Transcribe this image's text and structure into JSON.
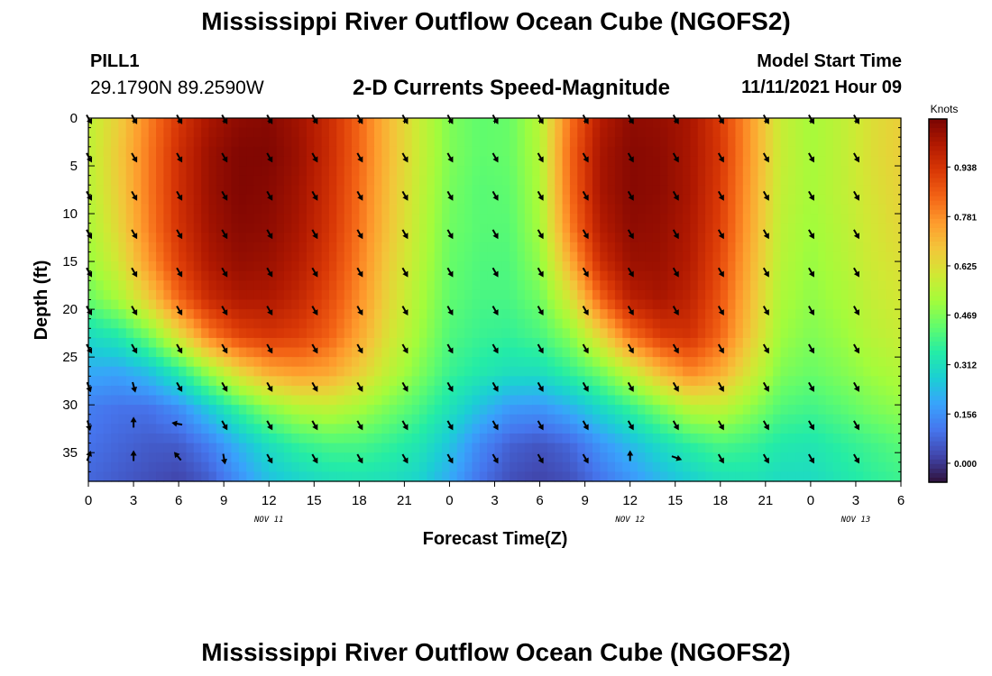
{
  "header": {
    "title": "Mississippi River Outflow Ocean Cube (NGOFS2)",
    "station": "PILL1",
    "coords": "29.1790N  89.2590W",
    "subtitle": "2-D Currents Speed-Magnitude",
    "model_start_label": "Model Start Time",
    "model_start_value": "11/11/2021 Hour 09"
  },
  "footer": {
    "title": "Mississippi River Outflow Ocean Cube (NGOFS2)"
  },
  "chart_data": {
    "type": "heatmap",
    "xlabel": "Forecast Time(Z)",
    "ylabel": "Depth (ft)",
    "colorbar_title": "Knots",
    "x_hours": [
      0,
      3,
      6,
      9,
      12,
      15,
      18,
      21,
      24,
      27,
      30,
      33,
      36,
      39,
      42,
      45,
      48,
      51,
      54
    ],
    "x_tick_labels": [
      "0",
      "3",
      "6",
      "9",
      "12",
      "15",
      "18",
      "21",
      "0",
      "3",
      "6",
      "9",
      "12",
      "15",
      "18",
      "21",
      "0",
      "3",
      "6"
    ],
    "date_labels": [
      {
        "text": "NOV 11",
        "hour": 12
      },
      {
        "text": "NOV 12",
        "hour": 36
      },
      {
        "text": "NOV 13",
        "hour": 51
      }
    ],
    "y_ticks": [
      0,
      5,
      10,
      15,
      20,
      25,
      30,
      35
    ],
    "xlim": [
      0,
      54
    ],
    "ylim": [
      38,
      0
    ],
    "colorbar_ticks": [
      "0.000",
      "0.156",
      "0.312",
      "0.469",
      "0.625",
      "0.781",
      "0.938"
    ],
    "colorbar_range": [
      -0.06,
      1.09
    ],
    "colormap": [
      "#30123b",
      "#4145ab",
      "#4675ed",
      "#39a2fc",
      "#1bcfd4",
      "#24eca6",
      "#61fc6c",
      "#a4fc3b",
      "#d1e834",
      "#f3c63a",
      "#fe9b2d",
      "#f36315",
      "#d93806",
      "#b11901",
      "#7a0402"
    ],
    "depths": [
      0,
      3.8,
      7.6,
      11.4,
      15.2,
      19.0,
      22.8,
      26.6,
      30.4,
      34.2,
      38
    ],
    "hours": [
      0,
      2,
      4,
      6,
      8,
      10,
      12,
      14,
      16,
      18,
      20,
      22,
      24,
      26,
      28,
      30,
      32,
      34,
      36,
      38,
      40,
      42,
      44,
      46,
      48,
      50,
      52,
      54
    ],
    "speed": [
      [
        0.56,
        0.66,
        0.8,
        0.93,
        1.02,
        1.06,
        1.07,
        1.03,
        0.96,
        0.84,
        0.7,
        0.58,
        0.47,
        0.43,
        0.44,
        0.55,
        0.82,
        1.0,
        1.06,
        1.05,
        1.02,
        0.92,
        0.76,
        0.58,
        0.52,
        0.56,
        0.62,
        0.66
      ],
      [
        0.56,
        0.67,
        0.81,
        0.95,
        1.04,
        1.08,
        1.08,
        1.04,
        0.96,
        0.84,
        0.7,
        0.58,
        0.47,
        0.43,
        0.44,
        0.54,
        0.84,
        1.02,
        1.07,
        1.06,
        1.02,
        0.93,
        0.76,
        0.58,
        0.52,
        0.56,
        0.62,
        0.66
      ],
      [
        0.55,
        0.66,
        0.81,
        0.95,
        1.04,
        1.08,
        1.07,
        1.03,
        0.95,
        0.83,
        0.69,
        0.57,
        0.46,
        0.42,
        0.43,
        0.53,
        0.83,
        1.02,
        1.07,
        1.06,
        1.02,
        0.92,
        0.75,
        0.57,
        0.52,
        0.56,
        0.61,
        0.65
      ],
      [
        0.53,
        0.64,
        0.8,
        0.94,
        1.03,
        1.07,
        1.06,
        1.02,
        0.94,
        0.82,
        0.68,
        0.56,
        0.45,
        0.42,
        0.42,
        0.52,
        0.8,
        1.0,
        1.06,
        1.05,
        1.01,
        0.91,
        0.74,
        0.56,
        0.51,
        0.55,
        0.6,
        0.64
      ],
      [
        0.5,
        0.6,
        0.76,
        0.91,
        1.01,
        1.05,
        1.04,
        1.0,
        0.92,
        0.8,
        0.66,
        0.55,
        0.44,
        0.41,
        0.41,
        0.49,
        0.72,
        0.95,
        1.04,
        1.04,
        1.0,
        0.89,
        0.72,
        0.55,
        0.5,
        0.54,
        0.59,
        0.62
      ],
      [
        0.44,
        0.52,
        0.66,
        0.84,
        0.96,
        1.01,
        1.01,
        0.97,
        0.89,
        0.78,
        0.64,
        0.53,
        0.43,
        0.4,
        0.4,
        0.45,
        0.6,
        0.84,
        0.99,
        1.02,
        0.98,
        0.87,
        0.7,
        0.53,
        0.49,
        0.52,
        0.57,
        0.6
      ],
      [
        0.3,
        0.34,
        0.45,
        0.62,
        0.8,
        0.9,
        0.93,
        0.91,
        0.85,
        0.74,
        0.61,
        0.51,
        0.41,
        0.38,
        0.37,
        0.4,
        0.48,
        0.64,
        0.82,
        0.92,
        0.94,
        0.84,
        0.67,
        0.51,
        0.47,
        0.5,
        0.55,
        0.58
      ],
      [
        0.2,
        0.19,
        0.24,
        0.35,
        0.5,
        0.64,
        0.73,
        0.76,
        0.74,
        0.66,
        0.56,
        0.47,
        0.38,
        0.34,
        0.31,
        0.31,
        0.37,
        0.45,
        0.57,
        0.7,
        0.79,
        0.73,
        0.6,
        0.47,
        0.44,
        0.47,
        0.51,
        0.54
      ],
      [
        0.12,
        0.1,
        0.1,
        0.15,
        0.26,
        0.38,
        0.48,
        0.54,
        0.56,
        0.52,
        0.46,
        0.4,
        0.32,
        0.24,
        0.17,
        0.16,
        0.21,
        0.29,
        0.37,
        0.46,
        0.55,
        0.56,
        0.49,
        0.41,
        0.39,
        0.42,
        0.46,
        0.49
      ],
      [
        0.1,
        0.08,
        0.06,
        0.06,
        0.12,
        0.22,
        0.31,
        0.37,
        0.4,
        0.4,
        0.37,
        0.33,
        0.25,
        0.14,
        0.07,
        0.05,
        0.08,
        0.16,
        0.23,
        0.3,
        0.36,
        0.4,
        0.38,
        0.34,
        0.33,
        0.36,
        0.39,
        0.42
      ],
      [
        0.08,
        0.06,
        0.04,
        0.02,
        0.06,
        0.15,
        0.24,
        0.28,
        0.31,
        0.32,
        0.31,
        0.28,
        0.2,
        0.1,
        0.04,
        0.02,
        0.04,
        0.1,
        0.16,
        0.22,
        0.27,
        0.31,
        0.32,
        0.3,
        0.3,
        0.33,
        0.36,
        0.38
      ]
    ],
    "vector_hours": [
      0,
      3,
      6,
      9,
      12,
      15,
      18,
      21,
      24,
      27,
      30,
      33,
      36,
      39,
      42,
      45,
      48,
      51
    ],
    "vector_depths": [
      0,
      4,
      8,
      12,
      16,
      20,
      24,
      28,
      32,
      35.5
    ],
    "vector_directions_deg": [
      [
        150,
        150,
        150,
        150,
        150,
        150,
        150,
        150,
        150,
        150,
        150,
        150,
        150,
        150,
        150,
        150,
        150,
        150
      ],
      [
        150,
        150,
        150,
        150,
        150,
        150,
        150,
        150,
        150,
        150,
        150,
        150,
        150,
        150,
        150,
        150,
        150,
        150
      ],
      [
        150,
        150,
        150,
        150,
        150,
        150,
        150,
        150,
        150,
        150,
        150,
        150,
        150,
        150,
        150,
        150,
        150,
        150
      ],
      [
        150,
        150,
        150,
        150,
        150,
        150,
        150,
        150,
        150,
        150,
        150,
        150,
        150,
        150,
        150,
        150,
        150,
        150
      ],
      [
        150,
        150,
        150,
        150,
        150,
        150,
        150,
        150,
        150,
        150,
        150,
        150,
        150,
        150,
        150,
        150,
        150,
        150
      ],
      [
        150,
        150,
        150,
        150,
        150,
        150,
        150,
        150,
        150,
        150,
        150,
        150,
        150,
        150,
        150,
        150,
        150,
        150
      ],
      [
        150,
        150,
        150,
        150,
        150,
        150,
        150,
        150,
        150,
        150,
        150,
        150,
        150,
        150,
        150,
        150,
        150,
        150
      ],
      [
        160,
        165,
        150,
        150,
        150,
        150,
        150,
        150,
        150,
        150,
        150,
        150,
        150,
        150,
        150,
        150,
        150,
        150
      ],
      [
        165,
        0,
        280,
        150,
        150,
        150,
        150,
        150,
        150,
        150,
        150,
        150,
        150,
        150,
        150,
        150,
        150,
        150
      ],
      [
        20,
        0,
        320,
        170,
        150,
        150,
        150,
        150,
        150,
        150,
        150,
        150,
        0,
        110,
        150,
        150,
        150,
        150
      ]
    ]
  }
}
